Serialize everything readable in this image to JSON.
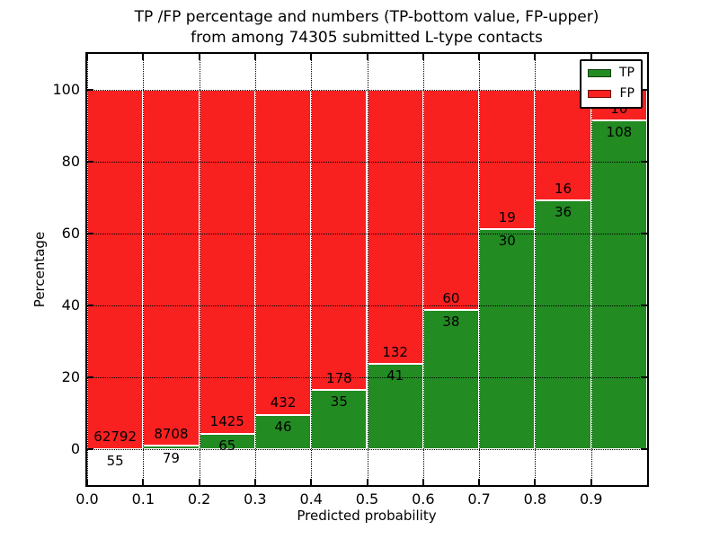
{
  "title": {
    "line1": "TP /FP percentage and numbers (TP-bottom value, FP-upper)",
    "line2": "from among 74305 submitted L-type contacts"
  },
  "axes": {
    "ylabel": "Percentage",
    "xlabel": "Predicted probability",
    "ytick_values": [
      0,
      20,
      40,
      60,
      80,
      100
    ],
    "ytick_labels": [
      "0",
      "20",
      "40",
      "60",
      "80",
      "100"
    ],
    "xtick_values": [
      0.0,
      0.1,
      0.2,
      0.3,
      0.4,
      0.5,
      0.6,
      0.7,
      0.8,
      0.9
    ],
    "xtick_labels": [
      "0.0",
      "0.1",
      "0.2",
      "0.3",
      "0.4",
      "0.5",
      "0.6",
      "0.7",
      "0.8",
      "0.9"
    ]
  },
  "legend": {
    "entries": [
      {
        "label": "TP",
        "color": "#228b22"
      },
      {
        "label": "FP",
        "color": "#f92020"
      }
    ]
  },
  "colors": {
    "tp": "#228b22",
    "fp": "#f92020",
    "bar_edge": "#ffffff",
    "grid": "#000000",
    "text": "#000000"
  },
  "chart_data": {
    "type": "bar",
    "stacked": true,
    "normalized_to_percent": true,
    "title": "TP /FP percentage and numbers (TP-bottom value, FP-upper) from among 74305 submitted L-type contacts",
    "xlabel": "Predicted probability",
    "ylabel": "Percentage",
    "total_contacts": 74305,
    "bin_edges": [
      0.0,
      0.1,
      0.2,
      0.3,
      0.4,
      0.5,
      0.6,
      0.7,
      0.8,
      0.9,
      1.0
    ],
    "categories": [
      "0.0-0.1",
      "0.1-0.2",
      "0.2-0.3",
      "0.3-0.4",
      "0.4-0.5",
      "0.5-0.6",
      "0.6-0.7",
      "0.7-0.8",
      "0.8-0.9",
      "0.9-1.0"
    ],
    "series": [
      {
        "name": "TP",
        "counts": [
          55,
          79,
          65,
          46,
          35,
          41,
          38,
          30,
          36,
          108
        ],
        "color": "#228b22"
      },
      {
        "name": "FP",
        "counts": [
          62792,
          8708,
          1425,
          432,
          178,
          132,
          60,
          19,
          16,
          10
        ],
        "color": "#f92020"
      }
    ],
    "tp_percent": [
      0.09,
      0.9,
      4.36,
      9.62,
      16.43,
      23.7,
      38.78,
      61.22,
      69.23,
      91.53
    ],
    "ylim": [
      -10,
      110
    ],
    "xlim": [
      0.0,
      1.0
    ],
    "grid": "dotted",
    "legend_position": "upper right"
  }
}
